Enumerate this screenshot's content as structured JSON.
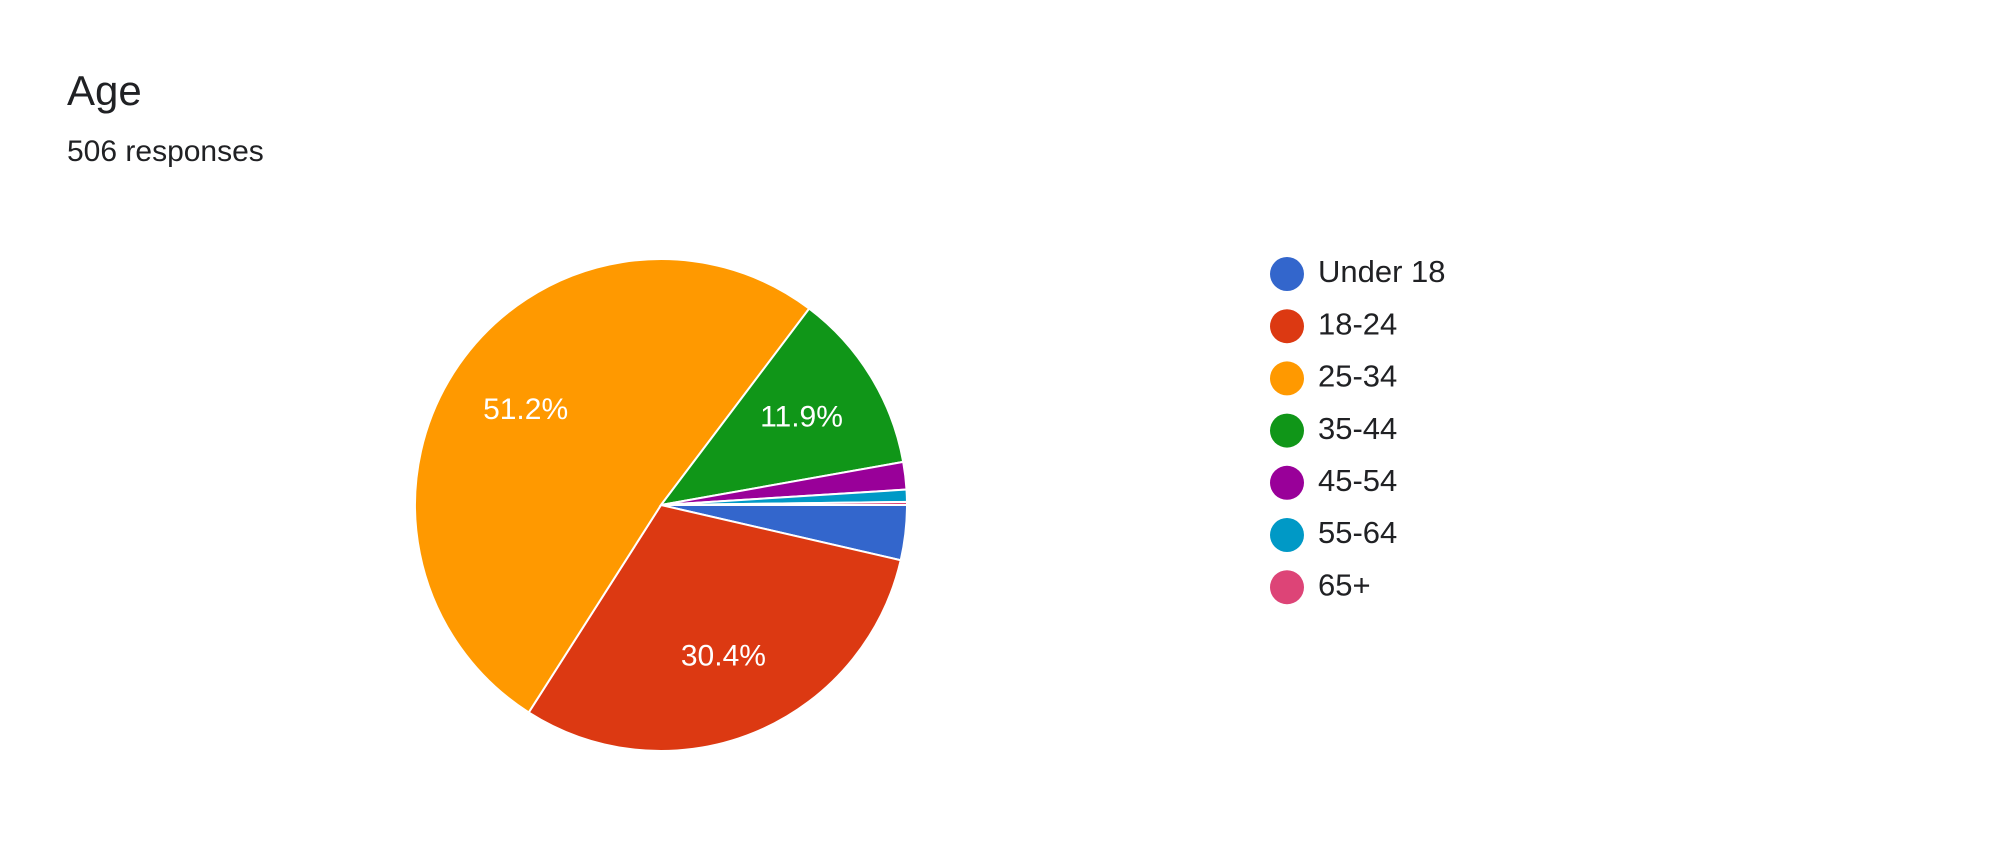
{
  "chart_data": {
    "type": "pie",
    "title": "Age",
    "subtitle": "506 responses",
    "categories": [
      "Under 18",
      "18-24",
      "25-34",
      "35-44",
      "45-54",
      "55-64",
      "65+"
    ],
    "values": [
      3.6,
      30.4,
      51.2,
      11.9,
      1.8,
      0.8,
      0.2
    ],
    "value_labels": [
      null,
      "30.4%",
      "51.2%",
      "11.9%",
      null,
      null,
      null
    ],
    "colors": [
      "#3366cc",
      "#dc3912",
      "#ff9900",
      "#109618",
      "#990099",
      "#0099c6",
      "#dd4477"
    ],
    "legend": "right"
  }
}
